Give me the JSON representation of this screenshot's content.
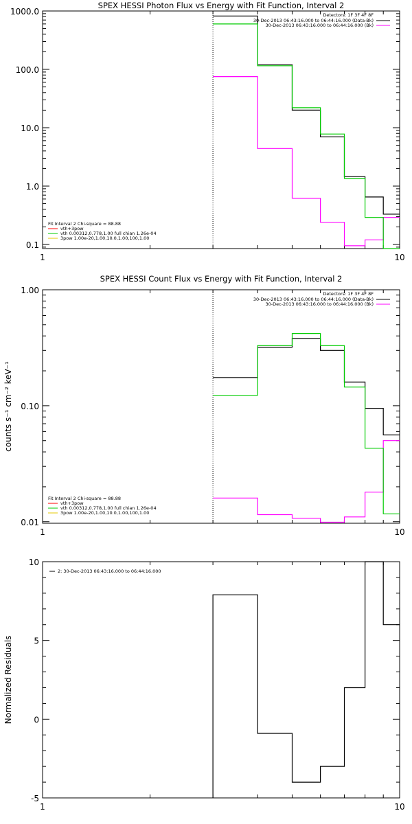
{
  "colors": {
    "background": "#ffffff",
    "axis": "#000000",
    "data": "#000000",
    "fit_total": "#00cc00",
    "background_model": "#ff00ff",
    "legend_red": "#ff0000",
    "legend_yellow": "#e6c800"
  },
  "chart_data": [
    {
      "type": "line",
      "step": true,
      "title": "SPEX HESSI Photon Flux vs Energy with Fit Function, Interval 2",
      "xlabel": "",
      "ylabel": "",
      "x_scale": "log",
      "y_scale": "log",
      "xlim": [
        1,
        10
      ],
      "ylim": [
        0.085,
        1000
      ],
      "x_ticks": [
        {
          "value": 1,
          "label": "1"
        },
        {
          "value": 10,
          "label": "10"
        }
      ],
      "y_ticks": [
        {
          "value": 0.1,
          "label": "0.1"
        },
        {
          "value": 1,
          "label": "1.0"
        },
        {
          "value": 10,
          "label": "10.0"
        },
        {
          "value": 100,
          "label": "100.0"
        },
        {
          "value": 1000,
          "label": "1000.0"
        }
      ],
      "vline_x": 3.0,
      "bin_edges": [
        3.0,
        4.0,
        5.0,
        6.0,
        7.0,
        8.0,
        9.0,
        10.0
      ],
      "series": [
        {
          "name": "30-Dec-2013 06:43:16.000 to 06:44:16.000 (Data-Bk)",
          "color": "#000000",
          "values": [
            820,
            120,
            20,
            7.0,
            1.45,
            0.65,
            0.33
          ]
        },
        {
          "name": "30-Dec-2013 06:43:16.000 to 06:44:16.000 (Bk)",
          "color": "#ff00ff",
          "values": [
            75,
            4.4,
            0.62,
            0.24,
            0.095,
            0.12,
            0.29
          ]
        },
        {
          "name": "vth+3pow",
          "color": "#00cc00",
          "values": [
            600,
            115,
            22,
            7.8,
            1.35,
            0.29,
            0.085
          ]
        }
      ],
      "legend_top": {
        "header": "Detectors: 1F 3F 4F 8F",
        "entries": [
          {
            "label": "30-Dec-2013 06:43:16.000 to 06:44:16.000 (Data-Bk)",
            "color": "#000000"
          },
          {
            "label": "30-Dec-2013 06:43:16.000 to 06:44:16.000 (Bk)",
            "color": "#ff00ff"
          }
        ]
      },
      "legend_bottom": {
        "header": "Fit Interval 2   Chi-square = 88.88",
        "entries": [
          {
            "label": "vth+3pow",
            "color": "#ff0000"
          },
          {
            "label": "vth 0.00312,0.778,1.00  full chian 1.26e-04",
            "color": "#00cc00"
          },
          {
            "label": "3pow 1.00e-20,1.00,10.0,1.00,100,1.00",
            "color": "#e6c800"
          }
        ]
      }
    },
    {
      "type": "line",
      "step": true,
      "title": "SPEX HESSI Count Flux vs Energy with Fit Function, Interval 2",
      "xlabel": "",
      "ylabel": "counts s⁻¹ cm⁻² keV⁻¹",
      "x_scale": "log",
      "y_scale": "log",
      "xlim": [
        1,
        10
      ],
      "ylim": [
        0.0097,
        1.0
      ],
      "x_ticks": [
        {
          "value": 1,
          "label": "1"
        },
        {
          "value": 10,
          "label": "10"
        }
      ],
      "y_ticks": [
        {
          "value": 0.01,
          "label": "0.01"
        },
        {
          "value": 0.1,
          "label": "0.10"
        },
        {
          "value": 1.0,
          "label": "1.00"
        }
      ],
      "vline_x": 3.0,
      "bin_edges": [
        3.0,
        4.0,
        5.0,
        6.0,
        7.0,
        8.0,
        9.0,
        10.0
      ],
      "series": [
        {
          "name": "30-Dec-2013 06:43:16.000 to 06:44:16.000 (Data-Bk)",
          "color": "#000000",
          "values": [
            0.175,
            0.32,
            0.38,
            0.3,
            0.16,
            0.095,
            0.056
          ]
        },
        {
          "name": "30-Dec-2013 06:43:16.000 to 06:44:16.000 (Bk)",
          "color": "#ff00ff",
          "values": [
            0.016,
            0.0115,
            0.0107,
            0.0099,
            0.011,
            0.018,
            0.05
          ]
        },
        {
          "name": "vth+3pow",
          "color": "#00cc00",
          "values": [
            0.123,
            0.33,
            0.42,
            0.33,
            0.145,
            0.043,
            0.0117
          ]
        }
      ],
      "legend_top": {
        "header": "Detectors: 1F 3F 4F 8F",
        "entries": [
          {
            "label": "30-Dec-2013 06:43:16.000 to 06:44:16.000 (Data-Bk)",
            "color": "#000000"
          },
          {
            "label": "30-Dec-2013 06:43:16.000 to 06:44:16.000 (Bk)",
            "color": "#ff00ff"
          }
        ]
      },
      "legend_bottom": {
        "header": "Fit Interval 2   Chi-square = 88.88",
        "entries": [
          {
            "label": "vth+3pow",
            "color": "#ff0000"
          },
          {
            "label": "vth 0.00312,0.778,1.00  full chian 1.26e-04",
            "color": "#00cc00"
          },
          {
            "label": "3pow 1.00e-20,1.00,10.0,1.00,100,1.00",
            "color": "#e6c800"
          }
        ]
      }
    },
    {
      "type": "line",
      "step": true,
      "title": "",
      "xlabel": "",
      "ylabel": "Normalized Residuals",
      "x_scale": "log",
      "y_scale": "linear",
      "xlim": [
        1,
        10
      ],
      "ylim": [
        -5,
        10
      ],
      "x_ticks": [
        {
          "value": 1,
          "label": "1"
        },
        {
          "value": 10,
          "label": "10"
        }
      ],
      "y_ticks": [
        {
          "value": -5,
          "label": "-5"
        },
        {
          "value": 0,
          "label": "0"
        },
        {
          "value": 5,
          "label": "5"
        },
        {
          "value": 10,
          "label": "10"
        }
      ],
      "bin_edges": [
        3.0,
        4.0,
        5.0,
        6.0,
        7.0,
        8.0,
        9.0,
        10.0
      ],
      "start_from_axis": true,
      "series": [
        {
          "name": "2: 30-Dec-2013 06:43:16.000 to 06:44:16.000",
          "color": "#000000",
          "values": [
            7.9,
            -0.9,
            -4.0,
            -3.0,
            2.0,
            10.1,
            6.0
          ]
        }
      ],
      "legend_top": {
        "header": "",
        "entries": [
          {
            "label": "2: 30-Dec-2013 06:43:16.000 to 06:44:16.000",
            "color": "#000000"
          }
        ]
      }
    }
  ]
}
